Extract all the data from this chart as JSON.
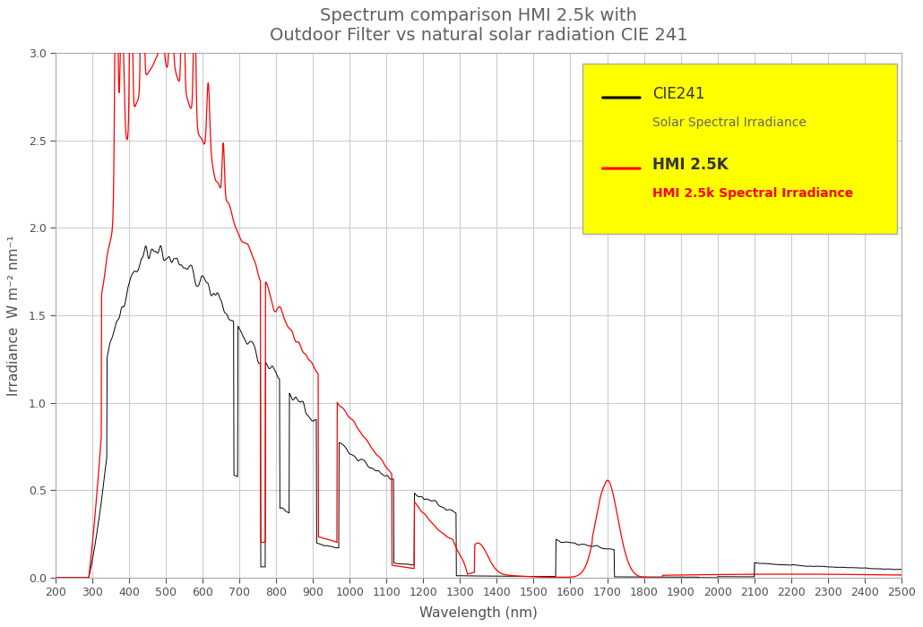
{
  "title": "Spectrum comparison HMI 2.5k with\nOutdoor Filter vs natural solar radiation CIE 241",
  "xlabel": "Wavelength (nm)",
  "ylabel": "Irradiance  W m⁻² nm⁻¹",
  "xlim": [
    200,
    2500
  ],
  "ylim": [
    0.0,
    3.0
  ],
  "xticks": [
    200,
    300,
    400,
    500,
    600,
    700,
    800,
    900,
    1000,
    1100,
    1200,
    1300,
    1400,
    1500,
    1600,
    1700,
    1800,
    1900,
    2000,
    2100,
    2200,
    2300,
    2400,
    2500
  ],
  "yticks": [
    0.0,
    0.5,
    1.0,
    1.5,
    2.0,
    2.5,
    3.0
  ],
  "legend_bg": "#ffff00",
  "cie_color": "#000000",
  "hmi_color": "#ff0000",
  "cie_label1": "CIE241",
  "cie_label2": "Solar Spectral Irradiance",
  "hmi_label1": "HMI 2.5K",
  "hmi_label2": "HMI 2.5k Spectral Irradiance",
  "grid_color": "#cccccc",
  "background": "#ffffff",
  "title_color": "#606060"
}
